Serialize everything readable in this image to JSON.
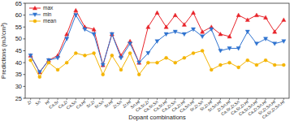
{
  "chart_data": {
    "type": "line",
    "x_label": "Dopant combinations",
    "y_label": "Predictions (mJ/cm³)",
    "categories": [
      "Zr",
      "Sn",
      "Hf",
      "Ca,Sr",
      "Ca,Zr",
      "Ca,Sn",
      "Ca,Hf",
      "Sr,Zr",
      "Sr,Sn",
      "Sr,Hf",
      "Zr,Sn",
      "Zr,Hf",
      "Sn,Hf",
      "Ca,Sr,Zr",
      "Ca,Sr,Sn",
      "Ca,Sr,Hf",
      "Ca,Zr,Sn",
      "Ca,Zr,Hf",
      "Ca,Sn,Hf",
      "Sr,Zr,Sn",
      "Sr,Zr,Hf",
      "Sr,Sn,Hf",
      "Zr,Sn,Hf",
      "Ca,Sr,Zr,Sn",
      "Ca,Sr,Zr,Hf",
      "Ca,Sr,Sn,Hf",
      "Ca,Zr,Sn,Hf",
      "Sr,Zr,Sn,Hf",
      "Ca,Sr,Zr,Sn,Hf"
    ],
    "series": [
      {
        "name": "max",
        "color": "#e8242a",
        "marker": "triangle-up",
        "values": [
          43,
          36,
          41,
          43,
          52,
          62,
          55,
          54,
          39,
          52,
          43,
          49,
          40,
          55,
          61,
          55,
          60,
          56,
          61,
          53,
          55,
          52,
          51,
          60,
          58,
          60,
          59,
          53,
          58
        ]
      },
      {
        "name": "min",
        "color": "#2f73d0",
        "marker": "triangle-down",
        "values": [
          43,
          36,
          41,
          42,
          50,
          60,
          54,
          52,
          39,
          52,
          42,
          48,
          40,
          44,
          49,
          52,
          53,
          52,
          54,
          51,
          54,
          45,
          46,
          46,
          53,
          48,
          50,
          48,
          49
        ]
      },
      {
        "name": "mean",
        "color": "#f4b400",
        "marker": "circle",
        "values": [
          41,
          34,
          40,
          37,
          40,
          44,
          43,
          44,
          35,
          43,
          37,
          44,
          35,
          40,
          40,
          42,
          40,
          42,
          44,
          45,
          37,
          39,
          40,
          38,
          41,
          39,
          41,
          39,
          39
        ]
      }
    ],
    "ylim": [
      25,
      65
    ],
    "yticks": [
      25,
      30,
      35,
      40,
      45,
      50,
      55,
      60,
      65
    ],
    "legend": "upper left",
    "grid": false
  }
}
